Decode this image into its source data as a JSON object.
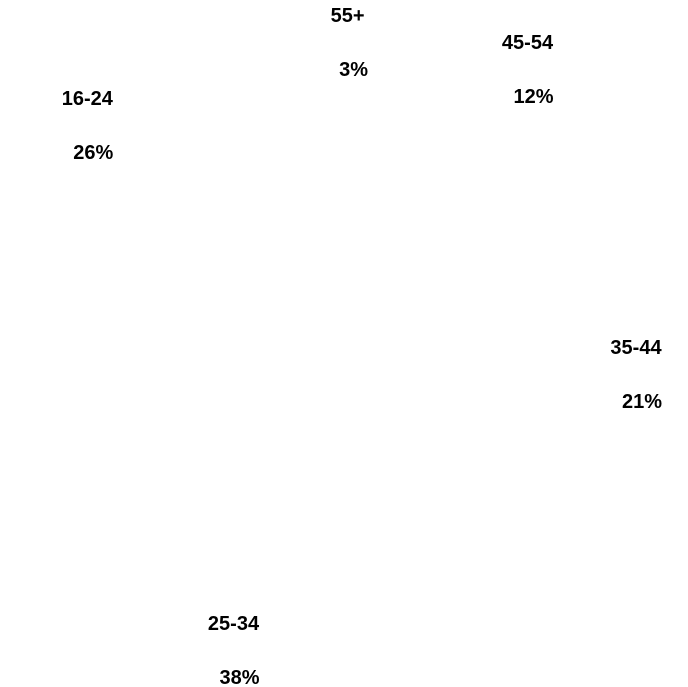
{
  "chart_data": {
    "type": "pie",
    "title": "",
    "label_color": "#000000",
    "background": "#ffffff",
    "slices": [
      {
        "category": "55+",
        "value": 3,
        "value_label": "3%"
      },
      {
        "category": "45-54",
        "value": 12,
        "value_label": "12%"
      },
      {
        "category": "35-44",
        "value": 21,
        "value_label": "21%"
      },
      {
        "category": "25-34",
        "value": 38,
        "value_label": "38%"
      },
      {
        "category": "16-24",
        "value": 26,
        "value_label": "26%"
      }
    ]
  }
}
